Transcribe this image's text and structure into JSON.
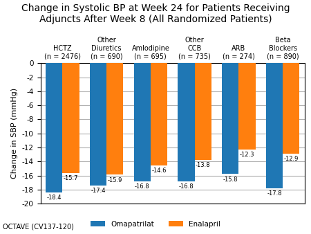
{
  "chart_data": {
    "type": "bar",
    "title": "Change in Systolic BP at Week 24 for Patients Receiving\nAdjuncts After Week 8 (All Randomized Patients)",
    "ylabel": "Change in SBP (mmHg)",
    "annotation": "OCTAVE (CV137-120)",
    "categories": [
      "HCTZ\n(n = 2476)",
      "Other\nDiuretics\n(n = 690)",
      "Amlodipine\n(n = 695)",
      "Other\nCCB\n(n = 735)",
      "ARB\n(n = 274)",
      "Beta\nBlockers\n(n = 890)"
    ],
    "series": [
      {
        "name": "Omapatrilat",
        "values": [
          -18.4,
          -17.4,
          -16.8,
          -16.8,
          -15.8,
          -17.8
        ]
      },
      {
        "name": "Enalapril",
        "values": [
          -15.7,
          -15.9,
          -14.6,
          -13.8,
          -12.3,
          -12.9
        ]
      }
    ],
    "ylim": [
      -20,
      0
    ],
    "yticks": [
      0,
      -2,
      -4,
      -6,
      -8,
      -10,
      -12,
      -14,
      -16,
      -18,
      -20
    ],
    "grid": true,
    "legend": "lower center",
    "data_labels": true
  }
}
